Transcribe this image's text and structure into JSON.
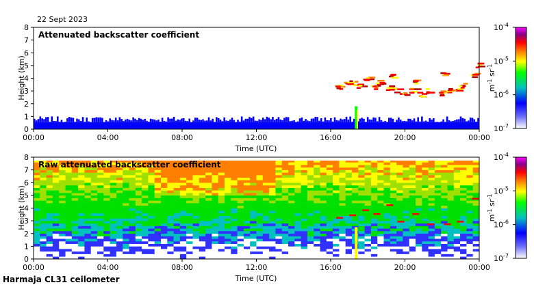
{
  "date_label": "22 Sept 2023",
  "footer_label": "Harmaja CL31 ceilometer",
  "colors": {
    "axis": "#000000",
    "colormap": [
      "#ff00ff",
      "#8a008a",
      "#b00000",
      "#ff0000",
      "#ff7f00",
      "#ffff00",
      "#00ff00",
      "#00c0c0",
      "#0000ff",
      "#ffffff"
    ]
  },
  "chart_data": [
    {
      "type": "heatmap",
      "title": "Attenuated backscatter coefficient",
      "xlabel": "Time (UTC)",
      "ylabel": "Height (km)",
      "xticks": [
        "00:00",
        "04:00",
        "08:00",
        "12:00",
        "16:00",
        "20:00",
        "00:00"
      ],
      "yticks": [
        "0",
        "1",
        "2",
        "3",
        "4",
        "5",
        "6",
        "7",
        "8"
      ],
      "xlim_hours": [
        0,
        24
      ],
      "ylim": [
        0,
        8
      ],
      "colorbar": {
        "ticks": [
          "10-7",
          "10-6",
          "10-5",
          "10-4"
        ],
        "exponents": [
          "-7",
          "-6",
          "-5",
          "-4"
        ],
        "unit": "m-1 sr-1",
        "scale": "log"
      }
    },
    {
      "type": "heatmap",
      "title": "Raw attenuated backscatter coefficient",
      "xlabel": "Time (UTC)",
      "ylabel": "Height (km)",
      "xticks": [
        "00:00",
        "04:00",
        "08:00",
        "12:00",
        "16:00",
        "20:00",
        "00:00"
      ],
      "yticks": [
        "0",
        "1",
        "2",
        "3",
        "4",
        "5",
        "6",
        "7",
        "8"
      ],
      "xlim_hours": [
        0,
        24
      ],
      "ylim": [
        0,
        8
      ],
      "colorbar": {
        "ticks": [
          "10-7",
          "10-6",
          "10-5",
          "10-4"
        ],
        "exponents": [
          "-7",
          "-6",
          "-5",
          "-4"
        ],
        "unit": "m-1 sr-1",
        "scale": "log"
      }
    }
  ]
}
